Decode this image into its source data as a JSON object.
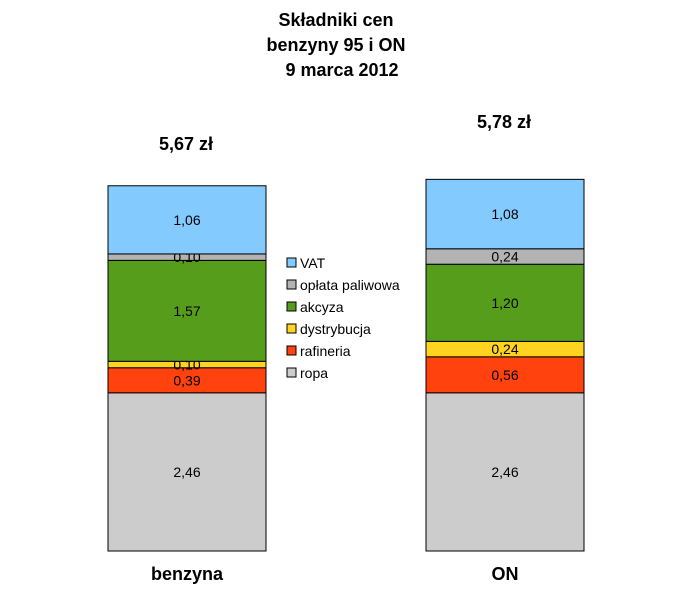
{
  "chart_data": {
    "type": "bar",
    "stacked": true,
    "title": [
      "Składniki cen",
      "benzyny 95 i ON",
      "9 marca 2012"
    ],
    "categories": [
      "benzyna",
      "ON"
    ],
    "totals": [
      "5,67 zł",
      "5,78 zł"
    ],
    "series": [
      {
        "name": "ropa",
        "color": "#cccccc",
        "values": [
          2.46,
          2.46
        ],
        "labels": [
          "2,46",
          "2,46"
        ]
      },
      {
        "name": "rafineria",
        "color": "#ff420e",
        "values": [
          0.39,
          0.56
        ],
        "labels": [
          "0,39",
          "0,56"
        ]
      },
      {
        "name": "dystrybucja",
        "color": "#ffd320",
        "values": [
          0.1,
          0.24
        ],
        "labels": [
          "0,10",
          "0,24"
        ]
      },
      {
        "name": "akcyza",
        "color": "#579d1c",
        "values": [
          1.57,
          1.2
        ],
        "labels": [
          "1,57",
          "1,20"
        ]
      },
      {
        "name": "opłata paliwowa",
        "color": "#b3b3b3",
        "values": [
          0.1,
          0.24
        ],
        "labels": [
          "0,10",
          "0,24"
        ]
      },
      {
        "name": "VAT",
        "color": "#83caff",
        "values": [
          1.06,
          1.08
        ],
        "labels": [
          "1,06",
          "1,08"
        ]
      }
    ],
    "legend_position": "center",
    "grid": false
  }
}
